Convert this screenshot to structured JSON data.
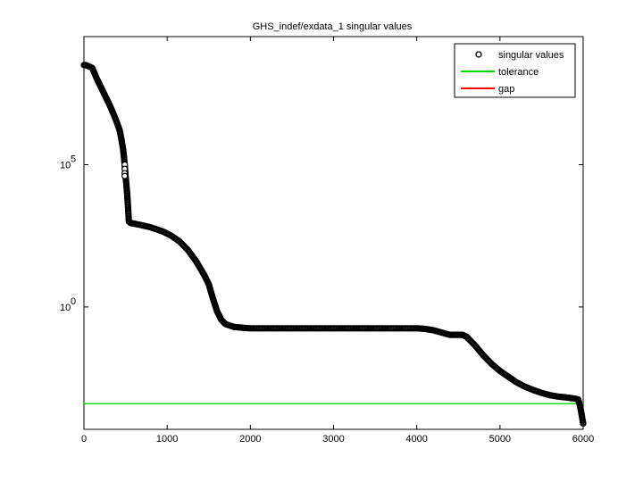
{
  "chart_data": {
    "type": "scatter",
    "title": "GHS_indef/exdata_1 singular values",
    "xlabel": "",
    "ylabel": "",
    "xlim": [
      0,
      6000
    ],
    "ylim_log10": [
      -4.3,
      9.5
    ],
    "yscale": "log",
    "x_ticks": [
      {
        "value": 0,
        "label": "0"
      },
      {
        "value": 1000,
        "label": "1000"
      },
      {
        "value": 2000,
        "label": "2000"
      },
      {
        "value": 3000,
        "label": "3000"
      },
      {
        "value": 4000,
        "label": "4000"
      },
      {
        "value": 5000,
        "label": "5000"
      },
      {
        "value": 6000,
        "label": "6000"
      }
    ],
    "y_ticks": [
      {
        "exp": 5,
        "base": "10",
        "sup": "5"
      },
      {
        "exp": 0,
        "base": "10",
        "sup": "0"
      }
    ],
    "legend_position": "top-right",
    "series": [
      {
        "name": "singular values",
        "marker": "circle",
        "color": "#000000",
        "points_log10": [
          [
            0,
            8.5
          ],
          [
            20,
            8.5
          ],
          [
            60,
            8.45
          ],
          [
            100,
            8.4
          ],
          [
            150,
            8.05
          ],
          [
            200,
            7.75
          ],
          [
            250,
            7.45
          ],
          [
            300,
            7.15
          ],
          [
            360,
            6.75
          ],
          [
            400,
            6.45
          ],
          [
            430,
            6.2
          ],
          [
            450,
            5.9
          ],
          [
            470,
            5.55
          ],
          [
            480,
            5.3
          ],
          [
            490,
            5.0
          ],
          [
            500,
            4.6
          ],
          [
            510,
            4.3
          ],
          [
            520,
            3.95
          ],
          [
            530,
            3.5
          ],
          [
            540,
            3.0
          ],
          [
            560,
            2.95
          ],
          [
            650,
            2.9
          ],
          [
            800,
            2.8
          ],
          [
            950,
            2.65
          ],
          [
            1050,
            2.5
          ],
          [
            1150,
            2.3
          ],
          [
            1250,
            2.0
          ],
          [
            1350,
            1.6
          ],
          [
            1450,
            1.1
          ],
          [
            1500,
            0.8
          ],
          [
            1550,
            0.3
          ],
          [
            1600,
            -0.15
          ],
          [
            1650,
            -0.45
          ],
          [
            1700,
            -0.6
          ],
          [
            1800,
            -0.7
          ],
          [
            1900,
            -0.73
          ],
          [
            2000,
            -0.75
          ],
          [
            2500,
            -0.75
          ],
          [
            3000,
            -0.75
          ],
          [
            3500,
            -0.75
          ],
          [
            4000,
            -0.75
          ],
          [
            4100,
            -0.77
          ],
          [
            4200,
            -0.82
          ],
          [
            4300,
            -0.9
          ],
          [
            4400,
            -0.98
          ],
          [
            4550,
            -0.98
          ],
          [
            4600,
            -1.05
          ],
          [
            4700,
            -1.35
          ],
          [
            4800,
            -1.7
          ],
          [
            4900,
            -2.0
          ],
          [
            5000,
            -2.25
          ],
          [
            5100,
            -2.45
          ],
          [
            5200,
            -2.65
          ],
          [
            5300,
            -2.8
          ],
          [
            5400,
            -2.92
          ],
          [
            5500,
            -3.02
          ],
          [
            5600,
            -3.1
          ],
          [
            5700,
            -3.15
          ],
          [
            5800,
            -3.18
          ],
          [
            5900,
            -3.22
          ],
          [
            5940,
            -3.25
          ],
          [
            5960,
            -3.45
          ],
          [
            5980,
            -3.75
          ],
          [
            6000,
            -4.1
          ]
        ]
      },
      {
        "name": "tolerance",
        "marker": "line",
        "color": "#00dd00",
        "y_log10": -3.4,
        "x_range": [
          0,
          6000
        ]
      },
      {
        "name": "gap",
        "marker": "line",
        "color": "#ff0000",
        "legend_only": true
      }
    ]
  }
}
